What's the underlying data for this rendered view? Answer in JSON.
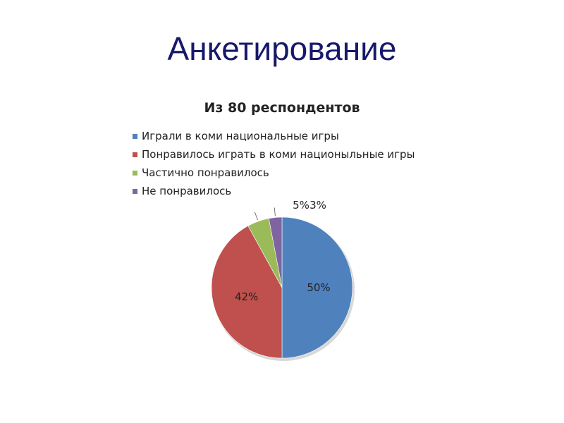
{
  "slide": {
    "title": "Анкетирование"
  },
  "chart_data": {
    "type": "pie",
    "title": "Из 80 респондентов",
    "legend_position": "top",
    "slices": [
      {
        "name": "Играли в коми национальные игры",
        "value": 50,
        "label": "50%",
        "color": "#4f81bd"
      },
      {
        "name": "Понравилось играть в коми национыльные игры",
        "value": 42,
        "label": "42%",
        "color": "#c0504d"
      },
      {
        "name": "Частично понравилось",
        "value": 5,
        "label": "5%",
        "color": "#9bbb59"
      },
      {
        "name": "Не понравилось",
        "value": 3,
        "label": "3%",
        "color": "#8064a2"
      }
    ]
  }
}
